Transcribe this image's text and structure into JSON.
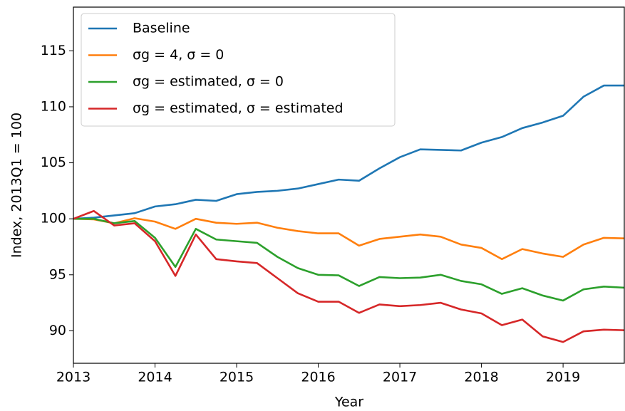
{
  "chart_data": {
    "type": "line",
    "x": [
      2013,
      2013.25,
      2013.5,
      2013.75,
      2014,
      2014.25,
      2014.5,
      2014.75,
      2015,
      2015.25,
      2015.5,
      2015.75,
      2016,
      2016.25,
      2016.5,
      2016.75,
      2017,
      2017.25,
      2017.5,
      2017.75,
      2018,
      2018.25,
      2018.5,
      2018.75,
      2019,
      2019.25,
      2019.5,
      2019.75
    ],
    "series": [
      {
        "name": "Baseline",
        "color": "#1f77b4",
        "values": [
          100,
          100.1,
          100.3,
          100.5,
          101.1,
          101.3,
          101.7,
          101.6,
          102.2,
          102.4,
          102.5,
          102.7,
          103.1,
          103.5,
          103.4,
          104.5,
          105.5,
          106.2,
          106.15,
          106.1,
          106.8,
          107.3,
          108.1,
          108.6,
          109.2,
          110.9,
          111.9,
          111.9
        ]
      },
      {
        "name": "σg = 4, σ = 0",
        "color": "#ff7f0e",
        "values": [
          100,
          99.95,
          99.6,
          100.05,
          99.75,
          99.1,
          100.0,
          99.65,
          99.55,
          99.65,
          99.2,
          98.9,
          98.7,
          98.7,
          97.6,
          98.2,
          98.4,
          98.6,
          98.4,
          97.7,
          97.4,
          96.4,
          97.3,
          96.9,
          96.6,
          97.7,
          98.3,
          98.25
        ]
      },
      {
        "name": "σg = estimated, σ = 0",
        "color": "#2ca02c",
        "values": [
          100,
          100.0,
          99.6,
          99.8,
          98.3,
          95.7,
          99.1,
          98.15,
          98.0,
          97.85,
          96.6,
          95.6,
          95.0,
          94.95,
          94.0,
          94.8,
          94.7,
          94.75,
          95.0,
          94.45,
          94.15,
          93.3,
          93.8,
          93.15,
          92.7,
          93.7,
          93.95,
          93.85
        ]
      },
      {
        "name": "σg = estimated, σ = estimated",
        "color": "#d62728",
        "values": [
          100,
          100.7,
          99.4,
          99.6,
          98.0,
          94.9,
          98.6,
          96.4,
          96.2,
          96.05,
          94.7,
          93.35,
          92.6,
          92.6,
          91.6,
          92.35,
          92.2,
          92.3,
          92.5,
          91.9,
          91.55,
          90.5,
          91.0,
          89.5,
          89.0,
          89.95,
          90.1,
          90.05
        ]
      }
    ],
    "xlabel": "Year",
    "ylabel": "Index, 2013Q1 = 100",
    "xlim": [
      2013,
      2019.75
    ],
    "xticks": [
      2013,
      2014,
      2015,
      2016,
      2017,
      2018,
      2019
    ],
    "ylim": [
      87.1,
      118.9
    ],
    "yticks": [
      90,
      95,
      100,
      105,
      110,
      115
    ],
    "legend": "upper-left"
  }
}
